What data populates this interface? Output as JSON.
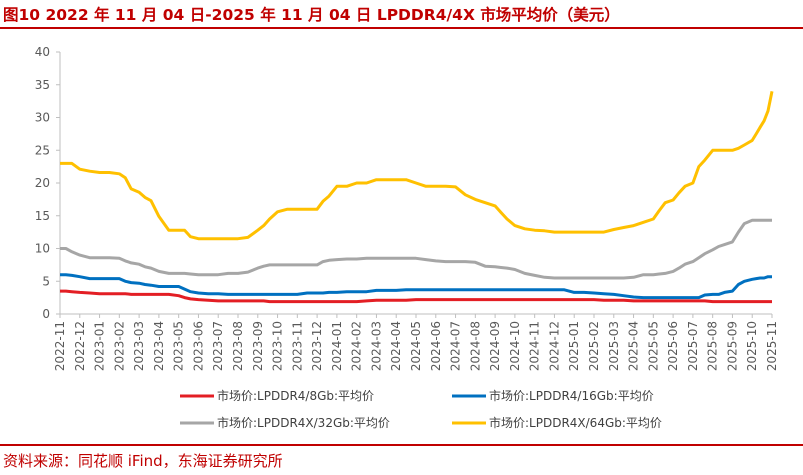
{
  "title": "图10  2022 年 11 月 04 日-2025 年 11 月 04 日 LPDDR4/4X 市场平均价（美元）",
  "source": "资料来源：同花顺 iFind，东海证券研究所",
  "chart_data": {
    "type": "line",
    "ylim": [
      0,
      40
    ],
    "yticks": [
      "0",
      "5",
      "10",
      "15",
      "20",
      "25",
      "30",
      "35",
      "40"
    ],
    "grid": false,
    "legend_position": "bottom",
    "categories": [
      "2022-11",
      "2022-12",
      "2023-01",
      "2023-02",
      "2023-03",
      "2023-04",
      "2023-05",
      "2023-06",
      "2023-07",
      "2023-08",
      "2023-09",
      "2023-10",
      "2023-11",
      "2023-12",
      "2024-01",
      "2024-02",
      "2024-03",
      "2024-04",
      "2024-05",
      "2024-06",
      "2024-07",
      "2024-08",
      "2024-09",
      "2024-10",
      "2024-11",
      "2024-12",
      "2025-01",
      "2025-02",
      "2025-03",
      "2025-04",
      "2025-05",
      "2025-06",
      "2025-07",
      "2025-08",
      "2025-09",
      "2025-10",
      "2025-11"
    ],
    "x": [
      0,
      0.3,
      0.6,
      1,
      1.5,
      2,
      2.5,
      3,
      3.3,
      3.6,
      4,
      4.3,
      4.6,
      5,
      5.5,
      6,
      6.3,
      6.6,
      7,
      7.5,
      8,
      8.5,
      9,
      9.5,
      10,
      10.3,
      10.6,
      11,
      11.5,
      12,
      12.5,
      13,
      13.3,
      13.6,
      14,
      14.5,
      15,
      15.5,
      16,
      16.5,
      17,
      17.5,
      18,
      18.5,
      19,
      19.5,
      20,
      20.5,
      21,
      21.5,
      22,
      22.3,
      22.6,
      23,
      23.5,
      24,
      24.5,
      25,
      25.5,
      26,
      26.5,
      27,
      27.5,
      28,
      28.5,
      29,
      29.5,
      30,
      30.3,
      30.6,
      31,
      31.3,
      31.6,
      32,
      32.3,
      32.6,
      33,
      33.3,
      33.6,
      34,
      34.3,
      34.6,
      35,
      35.2,
      35.4,
      35.6,
      35.8,
      36
    ],
    "series": [
      {
        "name": "市场价:LPDDR4/8Gb:平均价",
        "color": "#e31e24",
        "values": [
          3.5,
          3.5,
          3.4,
          3.3,
          3.2,
          3.1,
          3.1,
          3.1,
          3.1,
          3.0,
          3.0,
          3.0,
          3.0,
          3.0,
          3.0,
          2.8,
          2.5,
          2.3,
          2.2,
          2.1,
          2.0,
          2.0,
          2.0,
          2.0,
          2.0,
          2.0,
          1.9,
          1.9,
          1.9,
          1.9,
          1.9,
          1.9,
          1.9,
          1.9,
          1.9,
          1.9,
          1.9,
          2.0,
          2.1,
          2.1,
          2.1,
          2.1,
          2.2,
          2.2,
          2.2,
          2.2,
          2.2,
          2.2,
          2.2,
          2.2,
          2.2,
          2.2,
          2.2,
          2.2,
          2.2,
          2.2,
          2.2,
          2.2,
          2.2,
          2.2,
          2.2,
          2.2,
          2.1,
          2.1,
          2.1,
          2.0,
          2.0,
          2.0,
          2.0,
          2.0,
          2.0,
          2.0,
          2.0,
          2.0,
          2.0,
          2.0,
          1.9,
          1.9,
          1.9,
          1.9,
          1.9,
          1.9,
          1.9,
          1.9,
          1.9,
          1.9,
          1.9,
          1.9
        ]
      },
      {
        "name": "市场价:LPDDR4/16Gb:平均价",
        "color": "#0070c0",
        "values": [
          6.0,
          6.0,
          5.9,
          5.7,
          5.4,
          5.4,
          5.4,
          5.4,
          5.0,
          4.8,
          4.7,
          4.5,
          4.4,
          4.2,
          4.2,
          4.2,
          3.8,
          3.4,
          3.2,
          3.1,
          3.1,
          3.0,
          3.0,
          3.0,
          3.0,
          3.0,
          3.0,
          3.0,
          3.0,
          3.0,
          3.2,
          3.2,
          3.2,
          3.3,
          3.3,
          3.4,
          3.4,
          3.4,
          3.6,
          3.6,
          3.6,
          3.7,
          3.7,
          3.7,
          3.7,
          3.7,
          3.7,
          3.7,
          3.7,
          3.7,
          3.7,
          3.7,
          3.7,
          3.7,
          3.7,
          3.7,
          3.7,
          3.7,
          3.7,
          3.3,
          3.3,
          3.2,
          3.1,
          3.0,
          2.8,
          2.6,
          2.5,
          2.5,
          2.5,
          2.5,
          2.5,
          2.5,
          2.5,
          2.5,
          2.5,
          2.9,
          3.0,
          3.0,
          3.3,
          3.5,
          4.5,
          5.0,
          5.3,
          5.4,
          5.5,
          5.5,
          5.7,
          5.7
        ]
      },
      {
        "name": "市场价:LPDDR4X/32Gb:平均价",
        "color": "#a6a6a6",
        "values": [
          10.0,
          10.0,
          9.5,
          9.0,
          8.6,
          8.6,
          8.6,
          8.5,
          8.1,
          7.8,
          7.6,
          7.2,
          7.0,
          6.5,
          6.2,
          6.2,
          6.2,
          6.1,
          6.0,
          6.0,
          6.0,
          6.2,
          6.2,
          6.4,
          7.0,
          7.3,
          7.5,
          7.5,
          7.5,
          7.5,
          7.5,
          7.5,
          8.0,
          8.2,
          8.3,
          8.4,
          8.4,
          8.5,
          8.5,
          8.5,
          8.5,
          8.5,
          8.5,
          8.3,
          8.1,
          8.0,
          8.0,
          8.0,
          7.9,
          7.3,
          7.2,
          7.1,
          7.0,
          6.8,
          6.2,
          5.9,
          5.6,
          5.5,
          5.5,
          5.5,
          5.5,
          5.5,
          5.5,
          5.5,
          5.5,
          5.6,
          6.0,
          6.0,
          6.1,
          6.2,
          6.5,
          7.0,
          7.6,
          8.0,
          8.6,
          9.2,
          9.8,
          10.3,
          10.6,
          11.0,
          12.5,
          13.8,
          14.3,
          14.3,
          14.3,
          14.3,
          14.3,
          14.3
        ]
      },
      {
        "name": "市场价:LPDDR4X/64Gb:平均价",
        "color": "#ffc000",
        "values": [
          23.0,
          23.0,
          23.0,
          22.1,
          21.8,
          21.6,
          21.6,
          21.4,
          20.8,
          19.1,
          18.6,
          17.8,
          17.3,
          14.9,
          12.8,
          12.8,
          12.8,
          11.8,
          11.5,
          11.5,
          11.5,
          11.5,
          11.5,
          11.7,
          12.8,
          13.5,
          14.5,
          15.6,
          16.0,
          16.0,
          16.0,
          16.0,
          17.2,
          18.0,
          19.5,
          19.5,
          20.0,
          20.0,
          20.5,
          20.5,
          20.5,
          20.5,
          20.0,
          19.5,
          19.5,
          19.5,
          19.4,
          18.2,
          17.5,
          17.0,
          16.5,
          15.5,
          14.5,
          13.5,
          13.0,
          12.8,
          12.7,
          12.5,
          12.5,
          12.5,
          12.5,
          12.5,
          12.5,
          12.9,
          13.2,
          13.5,
          14.0,
          14.5,
          15.8,
          17.0,
          17.4,
          18.5,
          19.5,
          20.0,
          22.5,
          23.5,
          25.0,
          25.0,
          25.0,
          25.0,
          25.3,
          25.8,
          26.5,
          27.5,
          28.5,
          29.5,
          31.0,
          34.0
        ]
      }
    ]
  }
}
